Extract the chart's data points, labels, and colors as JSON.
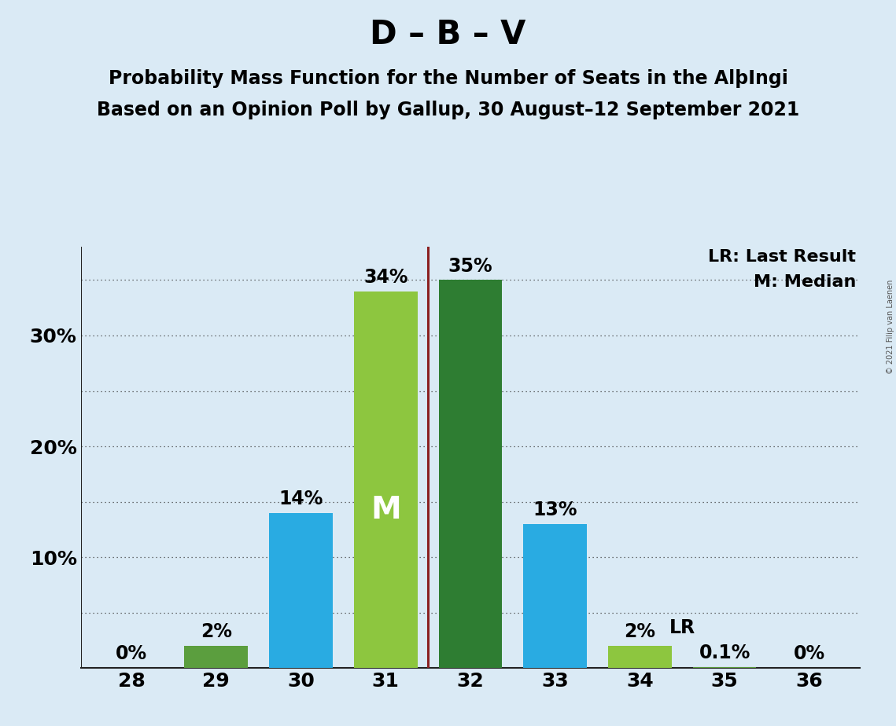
{
  "title": "D – B – V",
  "subtitle1": "Probability Mass Function for the Number of Seats in the AlþIngi",
  "subtitle2": "Based on an Opinion Poll by Gallup, 30 August–12 September 2021",
  "copyright": "© 2021 Filip van Laenen",
  "seats": [
    28,
    29,
    30,
    31,
    32,
    33,
    34,
    35,
    36
  ],
  "values": [
    0.0,
    0.02,
    0.14,
    0.34,
    0.35,
    0.13,
    0.02,
    0.001,
    0.0
  ],
  "labels": [
    "0%",
    "2%",
    "14%",
    "34%",
    "35%",
    "13%",
    "2%",
    "0.1%",
    "0%"
  ],
  "bar_colors": [
    "#5b9e3e",
    "#5b9e3e",
    "#29abe2",
    "#8dc63f",
    "#2e7d32",
    "#29abe2",
    "#8dc63f",
    "#5b9e3e",
    "#5b9e3e"
  ],
  "median_seat": 31,
  "last_result_seat": 34,
  "median_label": "M",
  "lr_label": "LR",
  "legend_lr": "LR: Last Result",
  "legend_m": "M: Median",
  "median_line_color": "#8b2020",
  "background_color": "#daeaf5",
  "grid_color": "#444444",
  "ylim": [
    0,
    0.38
  ],
  "xlim": [
    27.4,
    36.6
  ],
  "title_fontsize": 30,
  "subtitle_fontsize": 17,
  "tick_fontsize": 18,
  "label_fontsize": 17,
  "median_label_fontsize": 28,
  "legend_fontsize": 16,
  "bar_width": 0.75
}
